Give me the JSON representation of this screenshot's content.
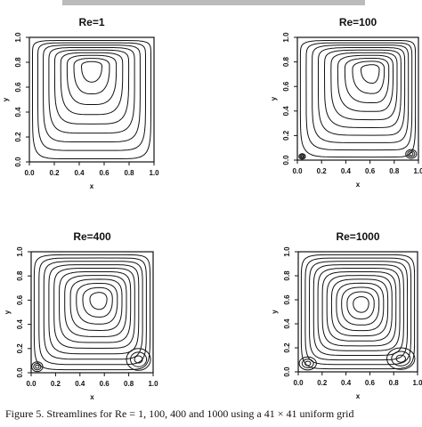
{
  "chart_data": [
    {
      "type": "contour",
      "title": "Re=1",
      "xlabel": "x",
      "ylabel": "y",
      "xlim": [
        0,
        1
      ],
      "ylim": [
        0,
        1
      ],
      "xticks": [
        {
          "value": 0,
          "label": "0.0"
        },
        {
          "value": 0.2,
          "label": "0.2"
        },
        {
          "value": 0.4,
          "label": "0.4"
        },
        {
          "value": 0.6,
          "label": "0.6"
        },
        {
          "value": 0.8,
          "label": "0.8"
        },
        {
          "value": 1,
          "label": "1.0"
        }
      ],
      "yticks": [
        {
          "value": 0,
          "label": "0.0"
        },
        {
          "value": 0.2,
          "label": "0.2"
        },
        {
          "value": 0.4,
          "label": "0.4"
        },
        {
          "value": 0.6,
          "label": "0.6"
        },
        {
          "value": 0.8,
          "label": "0.8"
        },
        {
          "value": 1,
          "label": "1.0"
        }
      ]
    },
    {
      "type": "contour",
      "title": "Re=100",
      "xlabel": "x",
      "ylabel": "y",
      "xlim": [
        0,
        1
      ],
      "ylim": [
        0,
        1
      ],
      "xticks": [
        {
          "value": 0,
          "label": "0.0"
        },
        {
          "value": 0.2,
          "label": "0.2"
        },
        {
          "value": 0.4,
          "label": "0.4"
        },
        {
          "value": 0.6,
          "label": "0.6"
        },
        {
          "value": 0.8,
          "label": "0.8"
        },
        {
          "value": 1,
          "label": "1.0"
        }
      ],
      "yticks": [
        {
          "value": 0,
          "label": "0.0"
        },
        {
          "value": 0.2,
          "label": "0.2"
        },
        {
          "value": 0.4,
          "label": "0.4"
        },
        {
          "value": 0.6,
          "label": "0.6"
        },
        {
          "value": 0.8,
          "label": "0.8"
        },
        {
          "value": 1,
          "label": "1.0"
        }
      ]
    },
    {
      "type": "contour",
      "title": "Re=400",
      "xlabel": "x",
      "ylabel": "y",
      "xlim": [
        0,
        1
      ],
      "ylim": [
        0,
        1
      ],
      "xticks": [
        {
          "value": 0,
          "label": "0.0"
        },
        {
          "value": 0.2,
          "label": "0.2"
        },
        {
          "value": 0.4,
          "label": "0.4"
        },
        {
          "value": 0.6,
          "label": "0.6"
        },
        {
          "value": 0.8,
          "label": "0.8"
        },
        {
          "value": 1,
          "label": "1.0"
        }
      ],
      "yticks": [
        {
          "value": 0,
          "label": "0.0"
        },
        {
          "value": 0.2,
          "label": "0.2"
        },
        {
          "value": 0.4,
          "label": "0.4"
        },
        {
          "value": 0.6,
          "label": "0.6"
        },
        {
          "value": 0.8,
          "label": "0.8"
        },
        {
          "value": 1,
          "label": "1.0"
        }
      ]
    },
    {
      "type": "contour",
      "title": "Re=1000",
      "xlabel": "x",
      "ylabel": "y",
      "xlim": [
        0,
        1
      ],
      "ylim": [
        0,
        1
      ],
      "xticks": [
        {
          "value": 0,
          "label": "0.0"
        },
        {
          "value": 0.2,
          "label": "0.2"
        },
        {
          "value": 0.4,
          "label": "0.4"
        },
        {
          "value": 0.6,
          "label": "0.6"
        },
        {
          "value": 0.8,
          "label": "0.8"
        },
        {
          "value": 1,
          "label": "1.0"
        }
      ],
      "yticks": [
        {
          "value": 0,
          "label": "0.0"
        },
        {
          "value": 0.2,
          "label": "0.2"
        },
        {
          "value": 0.4,
          "label": "0.4"
        },
        {
          "value": 0.6,
          "label": "0.6"
        },
        {
          "value": 0.8,
          "label": "0.8"
        },
        {
          "value": 1,
          "label": "1.0"
        }
      ]
    }
  ],
  "caption": "Figure 5.  Streamlines for Re = 1, 100, 400 and 1000 using a 41 × 41 uniform grid"
}
